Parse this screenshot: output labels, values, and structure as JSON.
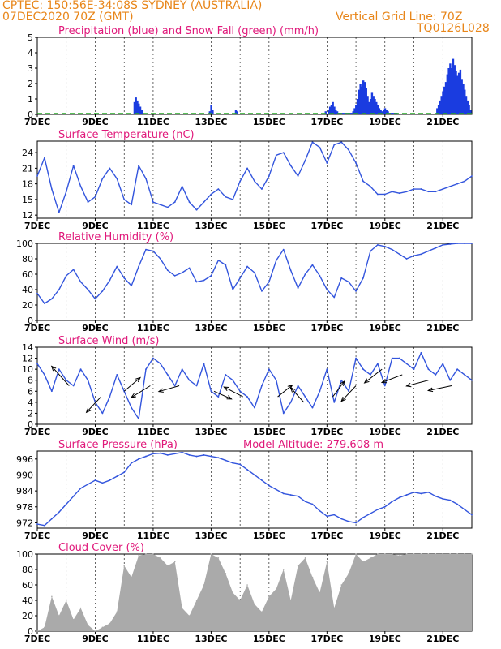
{
  "header": {
    "line1_left": "CPTEC:   150:56E-34:08S   SYDNEY (AUSTRALIA)",
    "line2_left": "07DEC2020  70Z  (GMT)",
    "line2_right": "Vertical Grid Line: 70Z",
    "code": "TQ0126L028"
  },
  "colors": {
    "header": "#e8861a",
    "title": "#e0187a",
    "line": "#3355dd",
    "precip": "#1a3ce0",
    "snow": "#22aa22",
    "cloud": "#aaaaaa"
  },
  "x_axis": {
    "ticks": [
      "7DEC",
      "9DEC",
      "11DEC",
      "13DEC",
      "15DEC",
      "17DEC",
      "19DEC",
      "21DEC"
    ],
    "day_start": 7,
    "day_end": 22.0
  },
  "chart_data": [
    {
      "type": "bar",
      "title": "Precipitation (blue) and Snow Fall (green) (mm/h)",
      "ylim": [
        0,
        5
      ],
      "yticks": [
        "0",
        "1",
        "2",
        "3",
        "4",
        "5"
      ],
      "series": [
        {
          "name": "Precipitation",
          "x": [
            10.35,
            10.4,
            10.45,
            10.5,
            10.55,
            10.6,
            12.95,
            13.0,
            13.05,
            13.85,
            13.9,
            16.95,
            17.05,
            17.1,
            17.15,
            17.2,
            17.25,
            17.3,
            17.35,
            17.4,
            17.45,
            17.5,
            17.55,
            17.6,
            17.65,
            17.7,
            17.75,
            17.8,
            17.85,
            17.9,
            17.95,
            18.0,
            18.05,
            18.1,
            18.15,
            18.2,
            18.25,
            18.3,
            18.35,
            18.4,
            18.45,
            18.5,
            18.55,
            18.6,
            18.65,
            18.7,
            18.75,
            18.8,
            18.85,
            18.9,
            18.95,
            19.0,
            19.05,
            19.1,
            19.15,
            19.2,
            19.25,
            19.3,
            19.35,
            19.4,
            20.8,
            20.85,
            20.9,
            20.95,
            21.0,
            21.05,
            21.1,
            21.15,
            21.2,
            21.25,
            21.3,
            21.35,
            21.4,
            21.45,
            21.5,
            21.55,
            21.6,
            21.65,
            21.7,
            21.75,
            21.8,
            21.85,
            21.9,
            21.95
          ],
          "values": [
            0.8,
            1.1,
            0.9,
            0.7,
            0.5,
            0.3,
            0.2,
            0.6,
            0.3,
            0.3,
            0.2,
            0.2,
            0.3,
            0.5,
            0.6,
            0.8,
            0.5,
            0.3,
            0.2,
            0.1,
            0.1,
            0.1,
            0.1,
            0.1,
            0.1,
            0.1,
            0.1,
            0.1,
            0.1,
            0.2,
            0.4,
            0.6,
            1.0,
            1.6,
            2.0,
            1.8,
            2.2,
            2.1,
            1.7,
            1.2,
            0.8,
            1.0,
            1.4,
            1.2,
            1.0,
            0.8,
            0.6,
            0.4,
            0.3,
            0.2,
            0.3,
            0.4,
            0.3,
            0.2,
            0.1,
            0.1,
            0.1,
            0.1,
            0.1,
            0.1,
            0.4,
            0.6,
            0.9,
            1.2,
            1.5,
            1.8,
            2.1,
            2.6,
            3.0,
            3.3,
            3.0,
            3.6,
            3.2,
            2.8,
            2.5,
            2.7,
            2.9,
            2.3,
            2.0,
            1.6,
            1.2,
            0.9,
            0.6,
            0.3
          ]
        },
        {
          "name": "Snow Fall",
          "x": [],
          "values": []
        }
      ]
    },
    {
      "type": "line",
      "title": "Surface Temperature (nC)",
      "ylim": [
        11.4,
        26.2
      ],
      "yticks": [
        "12",
        "15",
        "18",
        "21",
        "24"
      ],
      "x": [
        7.0,
        7.25,
        7.5,
        7.75,
        8.0,
        8.25,
        8.5,
        8.75,
        9.0,
        9.25,
        9.5,
        9.75,
        10.0,
        10.25,
        10.5,
        10.75,
        11.0,
        11.25,
        11.5,
        11.75,
        12.0,
        12.25,
        12.5,
        12.75,
        13.0,
        13.25,
        13.5,
        13.75,
        14.0,
        14.25,
        14.5,
        14.75,
        15.0,
        15.25,
        15.5,
        15.75,
        16.0,
        16.25,
        16.5,
        16.75,
        17.0,
        17.25,
        17.5,
        17.75,
        18.0,
        18.25,
        18.5,
        18.75,
        19.0,
        19.25,
        19.5,
        19.75,
        20.0,
        20.25,
        20.5,
        20.75,
        21.0,
        21.25,
        21.5,
        21.75,
        22.0
      ],
      "values": [
        19.5,
        23.0,
        17.0,
        12.5,
        16.5,
        21.5,
        17.5,
        14.5,
        15.5,
        19.0,
        21.0,
        19.0,
        15.0,
        14.0,
        21.5,
        19.0,
        14.5,
        14.0,
        13.5,
        14.5,
        17.5,
        14.5,
        13.0,
        14.5,
        16.0,
        17.0,
        15.5,
        15.0,
        18.5,
        21.0,
        18.5,
        17.0,
        19.5,
        23.5,
        24.0,
        21.5,
        19.5,
        22.5,
        26.0,
        25.0,
        22.0,
        25.5,
        26.0,
        24.5,
        22.0,
        18.5,
        17.5,
        16.0,
        16.0,
        16.5,
        16.2,
        16.5,
        17.0,
        17.0,
        16.5,
        16.5,
        17.0,
        17.5,
        18.0,
        18.5,
        19.5
      ]
    },
    {
      "type": "line",
      "title": "Relative Humidity (%)",
      "ylim": [
        0,
        100
      ],
      "yticks": [
        "0",
        "20",
        "40",
        "60",
        "80",
        "100"
      ],
      "x": [
        7.0,
        7.25,
        7.5,
        7.75,
        8.0,
        8.25,
        8.5,
        8.75,
        9.0,
        9.25,
        9.5,
        9.75,
        10.0,
        10.25,
        10.5,
        10.75,
        11.0,
        11.25,
        11.5,
        11.75,
        12.0,
        12.25,
        12.5,
        12.75,
        13.0,
        13.25,
        13.5,
        13.75,
        14.0,
        14.25,
        14.5,
        14.75,
        15.0,
        15.25,
        15.5,
        15.75,
        16.0,
        16.25,
        16.5,
        16.75,
        17.0,
        17.25,
        17.5,
        17.75,
        18.0,
        18.25,
        18.5,
        18.75,
        19.0,
        19.25,
        19.5,
        19.75,
        20.0,
        20.25,
        20.5,
        20.75,
        21.0,
        21.25,
        21.5,
        21.75,
        22.0
      ],
      "values": [
        35,
        22,
        28,
        40,
        58,
        66,
        50,
        40,
        28,
        38,
        52,
        70,
        55,
        45,
        70,
        92,
        90,
        80,
        65,
        58,
        62,
        68,
        50,
        52,
        58,
        78,
        72,
        40,
        55,
        70,
        62,
        38,
        50,
        78,
        92,
        65,
        42,
        60,
        72,
        58,
        40,
        30,
        55,
        50,
        38,
        55,
        90,
        98,
        96,
        92,
        86,
        80,
        84,
        86,
        90,
        94,
        98,
        99,
        100,
        100,
        100
      ]
    },
    {
      "type": "line",
      "title": "Surface Wind (m/s)",
      "ylim": [
        0,
        14
      ],
      "yticks": [
        "0",
        "2",
        "4",
        "6",
        "8",
        "10",
        "12",
        "14"
      ],
      "x": [
        7.0,
        7.25,
        7.5,
        7.75,
        8.0,
        8.25,
        8.5,
        8.75,
        9.0,
        9.25,
        9.5,
        9.75,
        10.0,
        10.25,
        10.5,
        10.75,
        11.0,
        11.25,
        11.5,
        11.75,
        12.0,
        12.25,
        12.5,
        12.75,
        13.0,
        13.25,
        13.5,
        13.75,
        14.0,
        14.25,
        14.5,
        14.75,
        15.0,
        15.25,
        15.5,
        15.75,
        16.0,
        16.25,
        16.5,
        16.75,
        17.0,
        17.25,
        17.5,
        17.75,
        18.0,
        18.25,
        18.5,
        18.75,
        19.0,
        19.25,
        19.5,
        19.75,
        20.0,
        20.25,
        20.5,
        20.75,
        21.0,
        21.25,
        21.5,
        21.75,
        22.0
      ],
      "values": [
        11,
        9,
        6,
        10,
        8,
        7,
        10,
        8,
        4,
        2,
        5,
        9,
        6,
        3,
        1,
        10,
        12,
        11,
        9,
        7,
        10,
        8,
        7,
        11,
        6,
        5,
        9,
        8,
        6,
        5,
        3,
        7,
        10,
        8,
        2,
        4,
        7,
        5,
        3,
        6,
        10,
        4,
        8,
        6,
        12,
        10,
        9,
        11,
        7,
        12,
        12,
        11,
        10,
        13,
        10,
        9,
        11,
        8,
        10,
        9,
        8
      ]
    },
    {
      "type": "line",
      "title": "Surface Pressure (hPa)",
      "subtitle": "Model Altitude: 279.608 m",
      "ylim": [
        970,
        999
      ],
      "yticks": [
        "972",
        "978",
        "984",
        "990",
        "996"
      ],
      "x": [
        7.0,
        7.25,
        7.5,
        7.75,
        8.0,
        8.25,
        8.5,
        8.75,
        9.0,
        9.25,
        9.5,
        9.75,
        10.0,
        10.25,
        10.5,
        10.75,
        11.0,
        11.25,
        11.5,
        11.75,
        12.0,
        12.25,
        12.5,
        12.75,
        13.0,
        13.25,
        13.5,
        13.75,
        14.0,
        14.25,
        14.5,
        14.75,
        15.0,
        15.25,
        15.5,
        15.75,
        16.0,
        16.25,
        16.5,
        16.75,
        17.0,
        17.25,
        17.5,
        17.75,
        18.0,
        18.25,
        18.5,
        18.75,
        19.0,
        19.25,
        19.5,
        19.75,
        20.0,
        20.25,
        20.5,
        20.75,
        21.0,
        21.25,
        21.5,
        21.75,
        22.0
      ],
      "values": [
        971.5,
        971.0,
        973.5,
        976.0,
        979.0,
        982.0,
        985.0,
        986.5,
        988.0,
        987.0,
        988.0,
        989.5,
        991.0,
        994.5,
        996.0,
        997.0,
        998.0,
        998.2,
        997.5,
        998.0,
        998.5,
        997.5,
        997.0,
        997.5,
        997.0,
        996.5,
        995.5,
        994.5,
        994.0,
        992.0,
        990.0,
        988.0,
        986.0,
        984.5,
        983.0,
        982.5,
        982.0,
        980.0,
        979.0,
        976.5,
        974.5,
        975.0,
        973.5,
        972.5,
        972.0,
        974.0,
        975.5,
        977.0,
        978.0,
        980.0,
        981.5,
        982.5,
        983.5,
        983.0,
        983.5,
        982.0,
        981.0,
        980.5,
        979.0,
        977.0,
        975.0
      ]
    },
    {
      "type": "bar",
      "title": "Cloud Cover (%)",
      "ylim": [
        0,
        100
      ],
      "yticks": [
        "0",
        "20",
        "40",
        "60",
        "80",
        "100"
      ],
      "x": [
        7.0,
        7.25,
        7.5,
        7.75,
        8.0,
        8.25,
        8.5,
        8.75,
        9.0,
        9.25,
        9.5,
        9.75,
        10.0,
        10.25,
        10.5,
        10.75,
        11.0,
        11.25,
        11.5,
        11.75,
        12.0,
        12.25,
        12.5,
        12.75,
        13.0,
        13.25,
        13.5,
        13.75,
        14.0,
        14.25,
        14.5,
        14.75,
        15.0,
        15.25,
        15.5,
        15.75,
        16.0,
        16.25,
        16.5,
        16.75,
        17.0,
        17.25,
        17.5,
        17.75,
        18.0,
        18.25,
        18.5,
        18.75,
        19.0,
        19.25,
        19.5,
        19.75,
        20.0,
        20.25,
        20.5,
        20.75,
        21.0,
        21.25,
        21.5,
        21.75,
        22.0
      ],
      "values": [
        0,
        5,
        45,
        20,
        40,
        15,
        30,
        8,
        0,
        5,
        10,
        25,
        85,
        70,
        98,
        100,
        100,
        95,
        85,
        90,
        30,
        20,
        40,
        60,
        100,
        95,
        75,
        50,
        40,
        60,
        35,
        25,
        45,
        55,
        80,
        40,
        85,
        95,
        70,
        50,
        90,
        30,
        60,
        75,
        100,
        90,
        95,
        100,
        100,
        100,
        98,
        100,
        100,
        100,
        100,
        100,
        100,
        100,
        100,
        100,
        100
      ]
    }
  ]
}
